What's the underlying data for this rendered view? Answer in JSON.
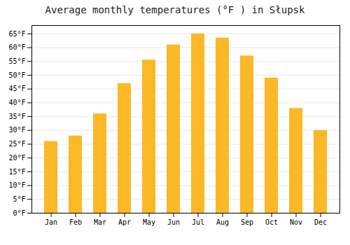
{
  "chart_data": {
    "type": "bar",
    "title": "Average monthly temperatures (°F ) in Słupsk",
    "categories": [
      "Jan",
      "Feb",
      "Mar",
      "Apr",
      "May",
      "Jun",
      "Jul",
      "Aug",
      "Sep",
      "Oct",
      "Nov",
      "Dec"
    ],
    "values": [
      26.0,
      28.0,
      36.0,
      47.0,
      55.5,
      61.0,
      65.0,
      63.5,
      57.0,
      49.0,
      38.0,
      30.0
    ],
    "color": "#FDB827",
    "ylim": [
      0,
      68
    ],
    "yticks": [
      {
        "value": 0,
        "label": "0°F"
      },
      {
        "value": 5,
        "label": "5°F"
      },
      {
        "value": 10,
        "label": "10°F"
      },
      {
        "value": 15,
        "label": "15°F"
      },
      {
        "value": 20,
        "label": "20°F"
      },
      {
        "value": 25,
        "label": "25°F"
      },
      {
        "value": 30,
        "label": "30°F"
      },
      {
        "value": 35,
        "label": "35°F"
      },
      {
        "value": 40,
        "label": "40°F"
      },
      {
        "value": 45,
        "label": "45°F"
      },
      {
        "value": 50,
        "label": "50°F"
      },
      {
        "value": 55,
        "label": "55°F"
      },
      {
        "value": 60,
        "label": "60°F"
      },
      {
        "value": 65,
        "label": "65°F"
      }
    ],
    "grid": true
  }
}
